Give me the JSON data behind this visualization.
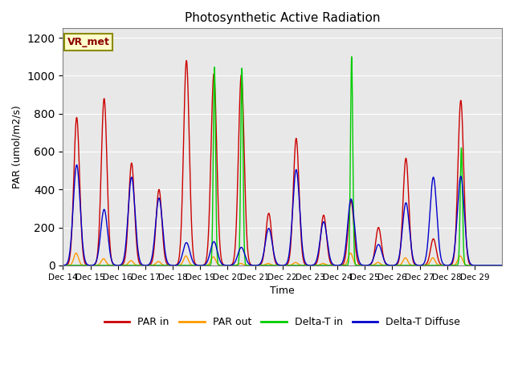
{
  "title": "Photosynthetic Active Radiation",
  "ylabel": "PAR (umol/m2/s)",
  "xlabel": "Time",
  "ylim": [
    0,
    1250
  ],
  "background_color": "#e8e8e8",
  "figure_color": "#ffffff",
  "label_box": "VR_met",
  "legend_labels": [
    "PAR in",
    "PAR out",
    "Delta-T in",
    "Delta-T Diffuse"
  ],
  "line_colors": [
    "#cc0000",
    "#ff9900",
    "#00cc00",
    "#0000cc"
  ],
  "xtick_labels": [
    "Dec 14",
    "Dec 15",
    "Dec 16",
    "Dec 17",
    "Dec 18",
    "Dec 19",
    "Dec 20",
    "Dec 21",
    "Dec 22",
    "Dec 23",
    "Dec 24",
    "Dec 25",
    "Dec 26",
    "Dec 27",
    "Dec 28",
    "Dec 29"
  ],
  "num_days": 16,
  "par_in_peaks": [
    780,
    880,
    540,
    400,
    1080,
    1010,
    1005,
    275,
    670,
    265,
    340,
    200,
    565,
    140,
    870,
    0
  ],
  "par_out_peaks": [
    65,
    35,
    25,
    20,
    50,
    45,
    10,
    10,
    15,
    10,
    65,
    15,
    40,
    40,
    50,
    0
  ],
  "delta_t_in_peaks": [
    0,
    0,
    0,
    0,
    0,
    1045,
    1040,
    0,
    0,
    0,
    1100,
    0,
    0,
    0,
    620,
    0
  ],
  "delta_t_diffuse_peaks": [
    530,
    295,
    465,
    355,
    120,
    125,
    95,
    195,
    505,
    230,
    350,
    110,
    330,
    465,
    470,
    0
  ]
}
